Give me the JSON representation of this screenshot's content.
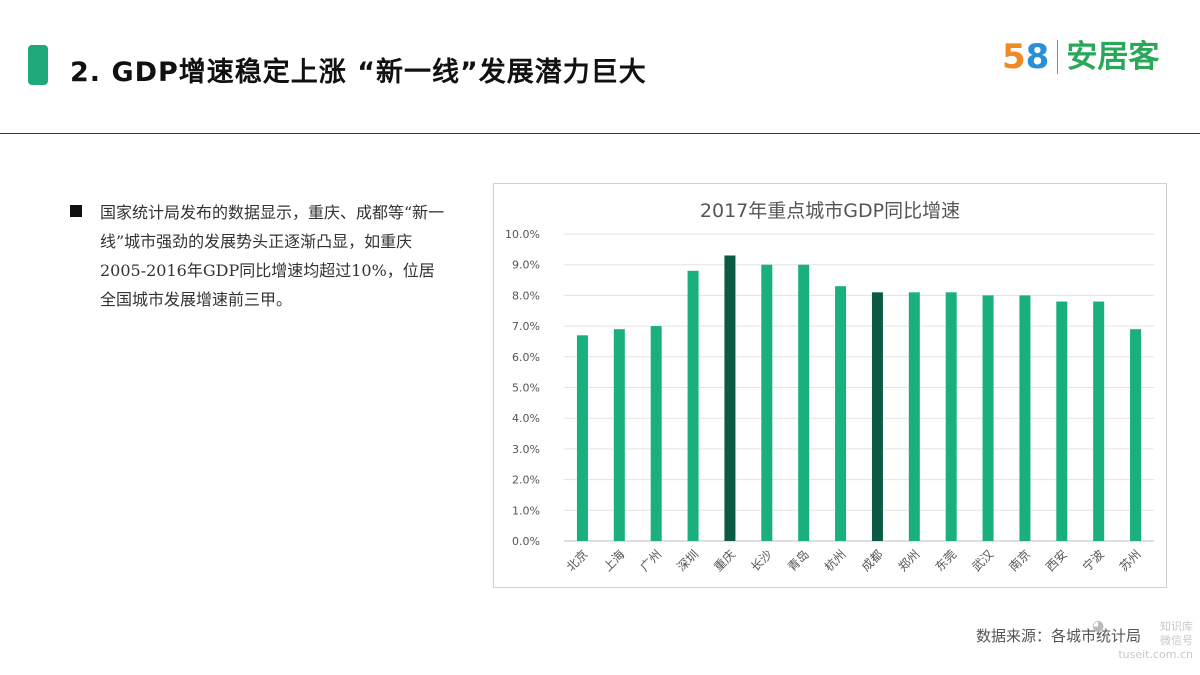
{
  "header": {
    "title": "2. GDP增速稳定上涨 “新一线”发展潜力巨大",
    "logo_digit_1": "5",
    "logo_digit_2": "8",
    "logo_text": "安居客"
  },
  "body": {
    "paragraph": "国家统计局发布的数据显示，重庆、成都等“新一线”城市强劲的发展势头正逐渐凸显，如重庆2005-2016年GDP同比增速均超过10%，位居全国城市发展增速前三甲。"
  },
  "footer": {
    "source": "数据来源：各城市统计局",
    "watermark_line1": "知识库",
    "watermark_line2": "微信号 tuseit.com.cn"
  },
  "colors": {
    "accent": "#1fa97a",
    "bar": "#19b07e",
    "bar_highlight": "#0b5a45"
  },
  "chart_data": {
    "type": "bar",
    "title": "2017年重点城市GDP同比增速",
    "categories": [
      "北京",
      "上海",
      "广州",
      "深圳",
      "重庆",
      "长沙",
      "青岛",
      "杭州",
      "成都",
      "郑州",
      "东莞",
      "武汉",
      "南京",
      "西安",
      "宁波",
      "苏州"
    ],
    "values": [
      6.7,
      6.9,
      7.0,
      8.8,
      9.3,
      9.0,
      9.0,
      8.3,
      8.1,
      8.1,
      8.1,
      8.0,
      8.0,
      7.8,
      7.8,
      6.9
    ],
    "highlighted": [
      "重庆",
      "成都"
    ],
    "ylim": [
      0,
      10
    ],
    "y_ticks": [
      "0.0%",
      "1.0%",
      "2.0%",
      "3.0%",
      "4.0%",
      "5.0%",
      "6.0%",
      "7.0%",
      "8.0%",
      "9.0%",
      "10.0%"
    ],
    "grid": true,
    "legend": "none",
    "xlabel": "",
    "ylabel": ""
  }
}
